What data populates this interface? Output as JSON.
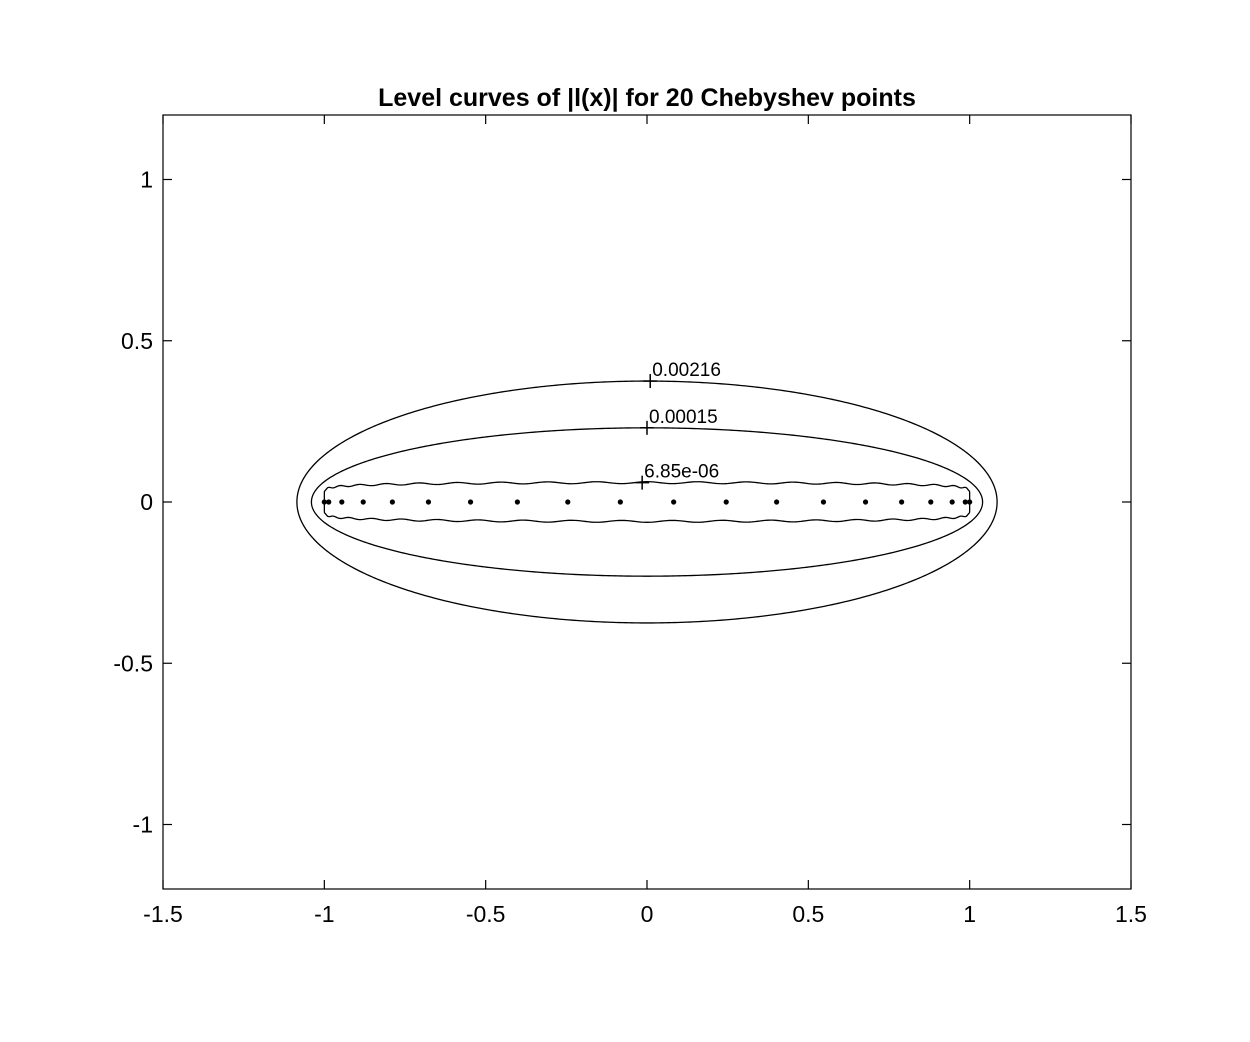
{
  "chart_data": {
    "type": "contour",
    "title": "Level curves of |l(x)| for 20 Chebyshev points",
    "xlabel": "",
    "ylabel": "",
    "xlim": [
      -1.5,
      1.5
    ],
    "ylim": [
      -1.2,
      1.2
    ],
    "xticks": [
      -1.5,
      -1,
      -0.5,
      0,
      0.5,
      1,
      1.5
    ],
    "xtick_labels": [
      "-1.5",
      "-1",
      "-0.5",
      "0",
      "0.5",
      "1",
      "1.5"
    ],
    "yticks": [
      -1,
      -0.5,
      0,
      0.5,
      1
    ],
    "ytick_labels": [
      "-1",
      "-0.5",
      "0",
      "0.5",
      "1"
    ],
    "grid": false,
    "n_points": 20,
    "points": {
      "x": [
        -1.0,
        -0.9864,
        -0.9458,
        -0.8795,
        -0.7891,
        -0.6773,
        -0.5469,
        -0.4017,
        -0.2455,
        -0.0826,
        0.0826,
        0.2455,
        0.4017,
        0.5469,
        0.6773,
        0.7891,
        0.8795,
        0.9458,
        0.9864,
        1.0
      ],
      "y": [
        0,
        0,
        0,
        0,
        0,
        0,
        0,
        0,
        0,
        0,
        0,
        0,
        0,
        0,
        0,
        0,
        0,
        0,
        0,
        0
      ]
    },
    "contours": [
      {
        "level": "0.00216",
        "semi_x": 1.085,
        "semi_y": 0.375,
        "label_x": 0.01,
        "label_y": 0.375
      },
      {
        "level": "0.00015",
        "semi_x": 1.04,
        "semi_y": 0.23,
        "label_x": 0.0,
        "label_y": 0.23
      },
      {
        "level": "6.85e-06",
        "semi_x": 1.0,
        "semi_y": 0.06,
        "label_x": -0.015,
        "label_y": 0.06,
        "wavy": true
      }
    ]
  }
}
